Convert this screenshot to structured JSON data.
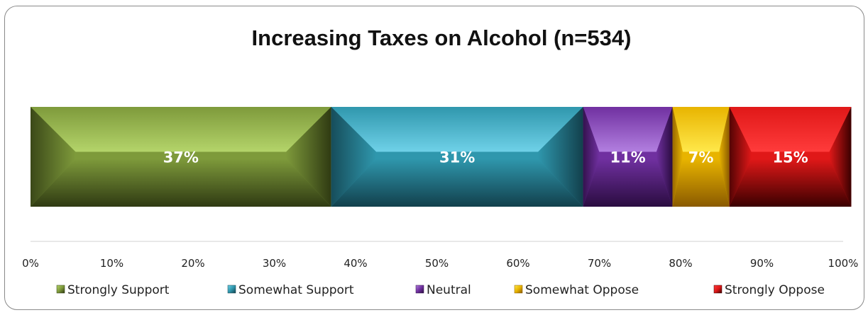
{
  "chart_data": {
    "type": "bar",
    "orientation": "horizontal-stacked-100",
    "title": "Increasing Taxes on Alcohol (n=534)",
    "categories": [
      "Increasing Taxes on Alcohol"
    ],
    "series": [
      {
        "name": "Strongly Support",
        "value": 37,
        "label": "37%",
        "color": "#7e9a3b",
        "light": "#b4d46a",
        "dark": "#2f3a12"
      },
      {
        "name": "Somewhat Support",
        "value": 31,
        "label": "31%",
        "color": "#2f97ad",
        "light": "#6fd1e8",
        "dark": "#12404c"
      },
      {
        "name": "Neutral",
        "value": 11,
        "label": "11%",
        "color": "#7030a0",
        "light": "#b27fe0",
        "dark": "#2a0c40"
      },
      {
        "name": "Somewhat Oppose",
        "value": 7,
        "label": "7%",
        "color": "#e8b400",
        "light": "#ffe84a",
        "dark": "#8a5a00"
      },
      {
        "name": "Strongly Oppose",
        "value": 15,
        "label": "15%",
        "color": "#e01818",
        "light": "#ff3b3b",
        "dark": "#3a0000"
      }
    ],
    "xlim": [
      0,
      100
    ],
    "xticks": [
      "0%",
      "10%",
      "20%",
      "30%",
      "40%",
      "50%",
      "60%",
      "70%",
      "80%",
      "90%",
      "100%"
    ],
    "legend_position": "bottom",
    "grid": false
  }
}
